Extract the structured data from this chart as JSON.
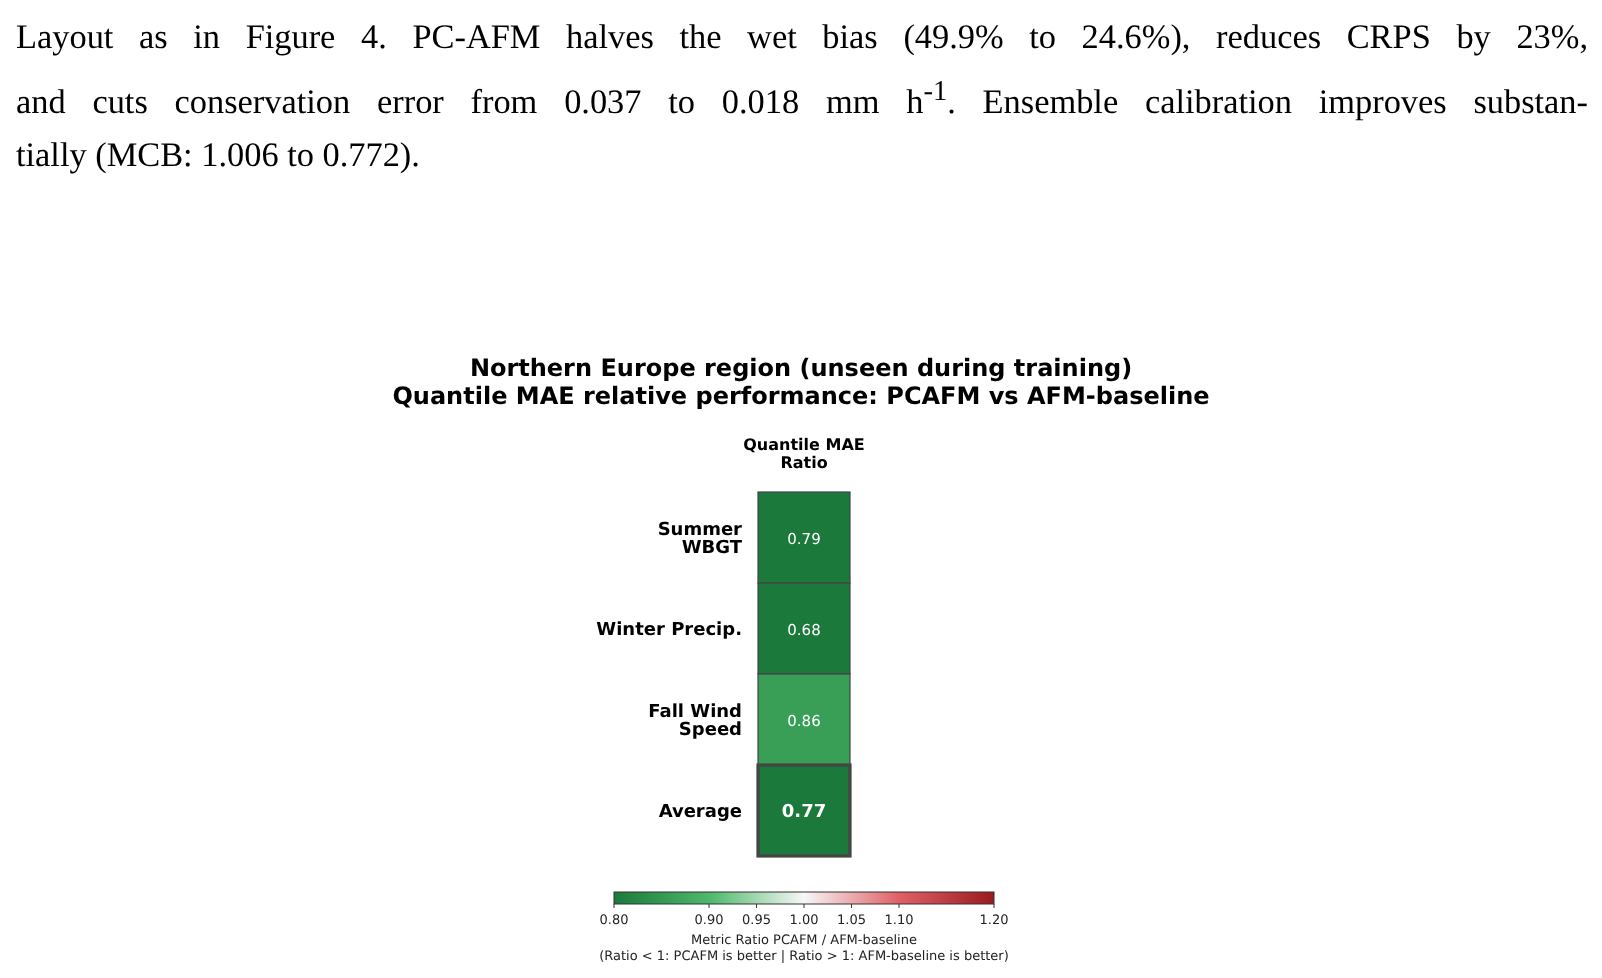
{
  "chart_data": {
    "type": "heatmap",
    "title": "Northern Europe region (unseen during training)\nQuantile MAE relative performance:  PCAFM  vs  AFM-baseline",
    "categories": [
      "Quantile MAE Ratio"
    ],
    "y_categories": [
      "Summer WBGT",
      "Winter Precip.",
      "Fall Wind Speed",
      "Average"
    ],
    "cells": [
      [
        0.79
      ],
      [
        0.68
      ],
      [
        0.86
      ],
      [
        0.77
      ]
    ],
    "data_labels": true,
    "clim": [
      0.8,
      1.2
    ],
    "cticks": [
      {
        "value": 0.8,
        "label": "0.80"
      },
      {
        "value": 0.9,
        "label": "0.90"
      },
      {
        "value": 0.95,
        "label": "0.95"
      },
      {
        "value": 1.0,
        "label": "1.00"
      },
      {
        "value": 1.05,
        "label": "1.05"
      },
      {
        "value": 1.1,
        "label": "1.10"
      },
      {
        "value": 1.2,
        "label": "1.20"
      }
    ],
    "clabel": "Metric Ratio  PCAFM / AFM-baseline\n(Ratio < 1: PCAFM is better  |  Ratio > 1: AFM-baseline is better)",
    "annotations": [
      "Layout as in Figure 4. PC-AFM halves the wet bias (49.9% to 24.6%), reduces CRPS by 23%,",
      "and cuts conservation error from 0.037 to 0.018 mm h$^{-1}$. Ensemble calibration improves substan-",
      "tially (MCB: 1.006 to 0.772)."
    ]
  }
}
